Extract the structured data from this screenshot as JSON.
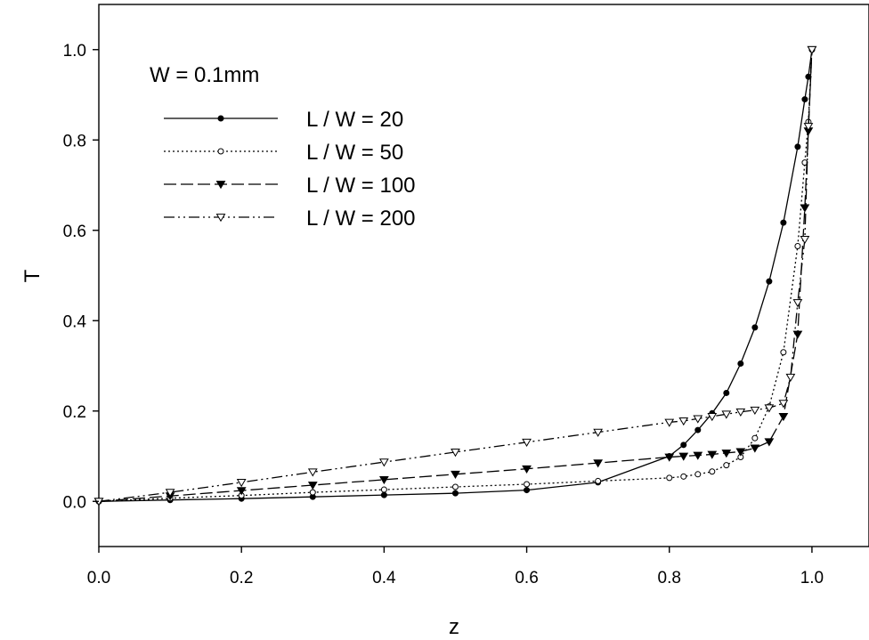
{
  "chart_data": {
    "type": "line",
    "title": "",
    "annotation": "W = 0.1mm",
    "xlabel": "z",
    "ylabel": "T",
    "xlim": [
      0.0,
      1.08
    ],
    "ylim": [
      -0.1,
      1.1
    ],
    "xticks": [
      "0.0",
      "0.2",
      "0.4",
      "0.6",
      "0.8",
      "1.0"
    ],
    "xtick_values": [
      0.0,
      0.2,
      0.4,
      0.6,
      0.8,
      1.0
    ],
    "yticks": [
      "0.0",
      "0.2",
      "0.4",
      "0.6",
      "0.8",
      "1.0"
    ],
    "ytick_values": [
      0.0,
      0.2,
      0.4,
      0.6,
      0.8,
      1.0
    ],
    "grid": false,
    "legend_position": "top-left",
    "series": [
      {
        "name": "L / W = 20",
        "line_style": "solid",
        "marker": "filled-circle",
        "color": "#000000",
        "x": [
          0.0,
          0.1,
          0.2,
          0.3,
          0.4,
          0.5,
          0.6,
          0.7,
          0.8,
          0.82,
          0.84,
          0.86,
          0.88,
          0.9,
          0.92,
          0.94,
          0.96,
          0.98,
          0.99,
          0.995,
          1.0
        ],
        "y": [
          0.0,
          0.003,
          0.006,
          0.01,
          0.014,
          0.018,
          0.025,
          0.042,
          0.1,
          0.125,
          0.158,
          0.195,
          0.24,
          0.305,
          0.385,
          0.487,
          0.617,
          0.785,
          0.89,
          0.94,
          1.0
        ]
      },
      {
        "name": "L / W = 50",
        "line_style": "dotted",
        "marker": "open-circle",
        "color": "#000000",
        "x": [
          0.0,
          0.1,
          0.2,
          0.3,
          0.4,
          0.5,
          0.6,
          0.7,
          0.8,
          0.82,
          0.84,
          0.86,
          0.88,
          0.9,
          0.92,
          0.94,
          0.96,
          0.98,
          0.99,
          0.995,
          1.0
        ],
        "y": [
          0.0,
          0.007,
          0.013,
          0.02,
          0.026,
          0.032,
          0.038,
          0.045,
          0.052,
          0.055,
          0.06,
          0.066,
          0.08,
          0.098,
          0.14,
          0.21,
          0.33,
          0.565,
          0.75,
          0.84,
          1.0
        ]
      },
      {
        "name": "L / W = 100",
        "line_style": "dashed",
        "marker": "filled-triangle-down",
        "color": "#000000",
        "x": [
          0.0,
          0.1,
          0.2,
          0.3,
          0.4,
          0.5,
          0.6,
          0.7,
          0.8,
          0.82,
          0.84,
          0.86,
          0.88,
          0.9,
          0.92,
          0.94,
          0.96,
          0.98,
          0.99,
          0.995,
          1.0
        ],
        "y": [
          0.0,
          0.012,
          0.024,
          0.036,
          0.048,
          0.06,
          0.072,
          0.085,
          0.098,
          0.1,
          0.102,
          0.104,
          0.107,
          0.11,
          0.118,
          0.132,
          0.188,
          0.37,
          0.65,
          0.82,
          1.0
        ]
      },
      {
        "name": "L / W = 200",
        "line_style": "dash-dot-dot",
        "marker": "open-triangle-down",
        "color": "#000000",
        "x": [
          0.0,
          0.1,
          0.2,
          0.3,
          0.4,
          0.5,
          0.6,
          0.7,
          0.8,
          0.82,
          0.84,
          0.86,
          0.88,
          0.9,
          0.92,
          0.94,
          0.96,
          0.97,
          0.98,
          0.99,
          0.995,
          1.0
        ],
        "y": [
          0.0,
          0.02,
          0.042,
          0.065,
          0.087,
          0.109,
          0.131,
          0.153,
          0.175,
          0.178,
          0.183,
          0.188,
          0.193,
          0.198,
          0.202,
          0.207,
          0.217,
          0.275,
          0.44,
          0.58,
          0.83,
          1.0
        ]
      }
    ]
  }
}
